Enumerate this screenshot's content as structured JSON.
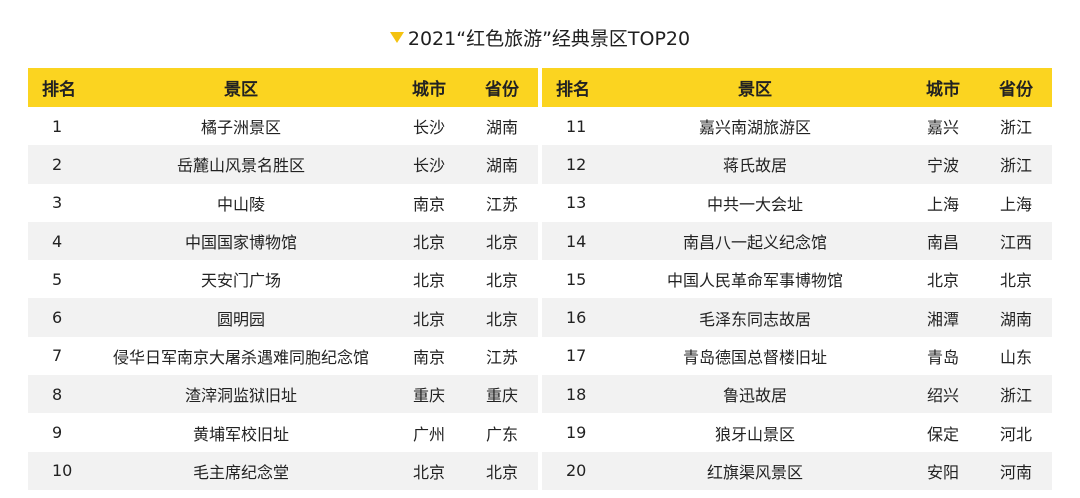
{
  "title": "2021“红色旅游”经典景区TOP20",
  "colors": {
    "header_bg": "#fbd420",
    "stripe_bg": "#f2f2f2",
    "marker": "#f4c20f"
  },
  "marker_icon": "triangle-down-icon",
  "headers": {
    "rank": "排名",
    "spot": "景区",
    "city": "城市",
    "province": "省份"
  },
  "left_rows": [
    {
      "rank": "1",
      "spot": "橘子洲景区",
      "city": "长沙",
      "province": "湖南"
    },
    {
      "rank": "2",
      "spot": "岳麓山风景名胜区",
      "city": "长沙",
      "province": "湖南"
    },
    {
      "rank": "3",
      "spot": "中山陵",
      "city": "南京",
      "province": "江苏"
    },
    {
      "rank": "4",
      "spot": "中国国家博物馆",
      "city": "北京",
      "province": "北京"
    },
    {
      "rank": "5",
      "spot": "天安门广场",
      "city": "北京",
      "province": "北京"
    },
    {
      "rank": "6",
      "spot": "圆明园",
      "city": "北京",
      "province": "北京"
    },
    {
      "rank": "7",
      "spot": "侵华日军南京大屠杀遇难同胞纪念馆",
      "city": "南京",
      "province": "江苏"
    },
    {
      "rank": "8",
      "spot": "渣滓洞监狱旧址",
      "city": "重庆",
      "province": "重庆"
    },
    {
      "rank": "9",
      "spot": "黄埔军校旧址",
      "city": "广州",
      "province": "广东"
    },
    {
      "rank": "10",
      "spot": "毛主席纪念堂",
      "city": "北京",
      "province": "北京"
    }
  ],
  "right_rows": [
    {
      "rank": "11",
      "spot": "嘉兴南湖旅游区",
      "city": "嘉兴",
      "province": "浙江"
    },
    {
      "rank": "12",
      "spot": "蒋氏故居",
      "city": "宁波",
      "province": "浙江"
    },
    {
      "rank": "13",
      "spot": "中共一大会址",
      "city": "上海",
      "province": "上海"
    },
    {
      "rank": "14",
      "spot": "南昌八一起义纪念馆",
      "city": "南昌",
      "province": "江西"
    },
    {
      "rank": "15",
      "spot": "中国人民革命军事博物馆",
      "city": "北京",
      "province": "北京"
    },
    {
      "rank": "16",
      "spot": "毛泽东同志故居",
      "city": "湘潭",
      "province": "湖南"
    },
    {
      "rank": "17",
      "spot": "青岛德国总督楼旧址",
      "city": "青岛",
      "province": "山东"
    },
    {
      "rank": "18",
      "spot": "鲁迅故居",
      "city": "绍兴",
      "province": "浙江"
    },
    {
      "rank": "19",
      "spot": "狼牙山景区",
      "city": "保定",
      "province": "河北"
    },
    {
      "rank": "20",
      "spot": "红旗渠风景区",
      "city": "安阳",
      "province": "河南"
    }
  ]
}
